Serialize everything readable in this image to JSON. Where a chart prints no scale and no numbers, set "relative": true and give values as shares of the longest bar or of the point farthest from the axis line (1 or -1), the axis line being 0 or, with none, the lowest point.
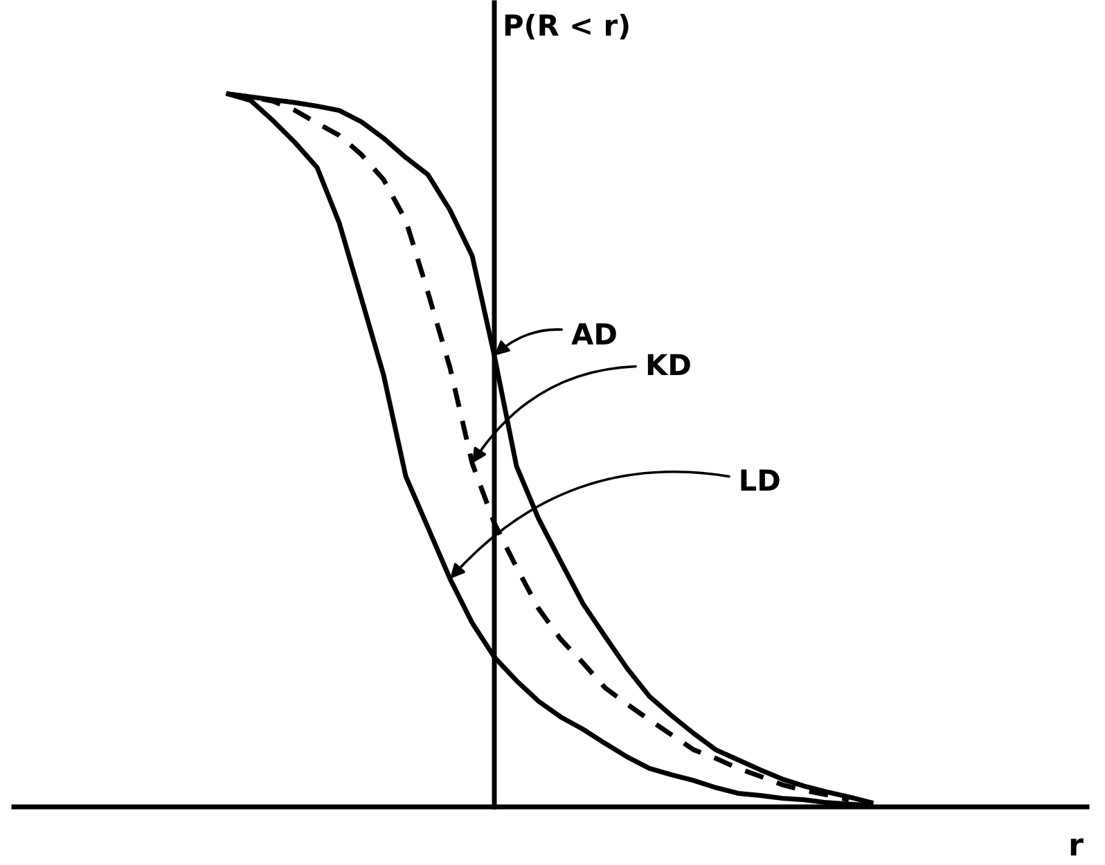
{
  "chart_data": {
    "type": "line",
    "relative": true,
    "ylabel": "P(R < r)",
    "grid": false,
    "legend": false,
    "annotations": [
      "AD",
      "KD",
      "LD",
      "r"
    ],
    "categories": [
      null,
      null,
      null,
      null,
      null,
      null,
      null,
      null,
      null,
      null,
      null,
      null,
      null,
      null,
      null,
      null,
      null,
      null,
      null,
      null,
      null,
      null,
      null,
      null,
      null,
      null,
      null,
      null,
      null,
      null
    ],
    "series": [
      {
        "color": "#000000",
        "line_style": "solid",
        "values": [
          1.0,
          0.996,
          0.992,
          0.988,
          0.983,
          0.977,
          0.961,
          0.938,
          0.911,
          0.887,
          0.837,
          0.773,
          0.633,
          0.478,
          0.404,
          0.344,
          0.285,
          0.239,
          0.194,
          0.155,
          0.128,
          0.103,
          0.08,
          0.066,
          0.052,
          0.039,
          0.029,
          0.021,
          0.014,
          0.006
        ]
      },
      {
        "color": "#000000",
        "line_style": "dashed",
        "values": [
          1.0,
          0.996,
          0.99,
          0.977,
          0.959,
          0.942,
          0.915,
          0.88,
          0.823,
          0.722,
          0.616,
          0.482,
          0.398,
          0.336,
          0.278,
          0.235,
          0.202,
          0.167,
          0.144,
          0.122,
          0.101,
          0.08,
          0.068,
          0.054,
          0.043,
          0.031,
          0.023,
          0.017,
          0.01,
          null
        ]
      },
      {
        "color": "#000000",
        "line_style": "solid",
        "values": [
          1.0,
          0.991,
          0.963,
          0.932,
          0.897,
          0.819,
          0.713,
          0.606,
          0.464,
          0.392,
          0.32,
          0.258,
          0.21,
          0.177,
          0.148,
          0.126,
          0.109,
          0.089,
          0.07,
          0.054,
          0.045,
          0.037,
          0.027,
          0.019,
          0.016,
          0.012,
          0.01,
          0.006,
          0.004,
          0.002
        ]
      }
    ]
  }
}
